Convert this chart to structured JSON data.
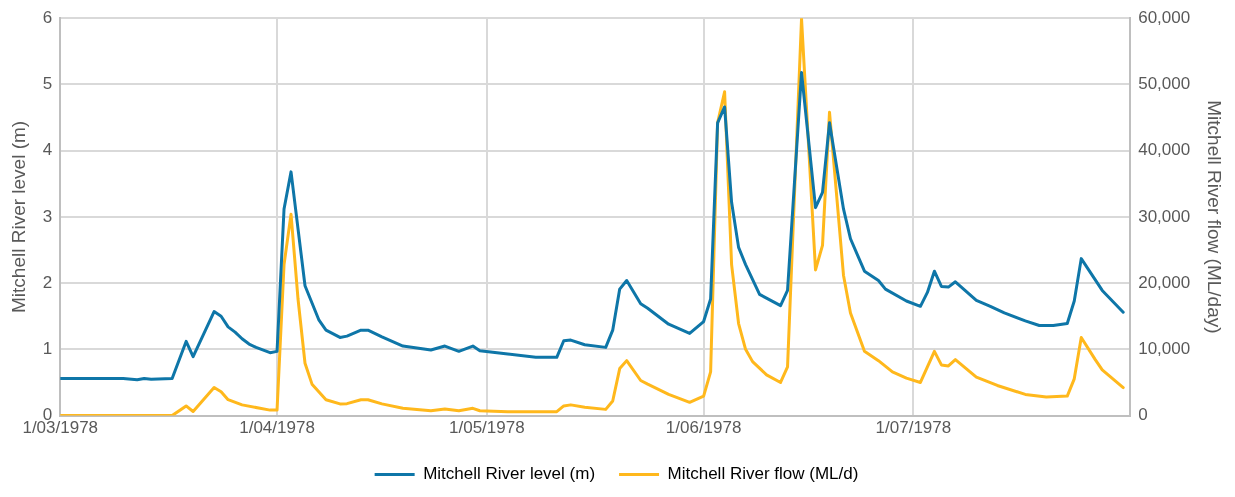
{
  "chart_data": {
    "type": "line",
    "ylabel": "Mitchell River level (m)",
    "y2label": "Mitchell River flow (ML/day)",
    "xlim": [
      "1978-03-01",
      "1978-08-01"
    ],
    "xticks": [
      {
        "value": "1978-03-01",
        "label": "1/03/1978"
      },
      {
        "value": "1978-04-01",
        "label": "1/04/1978"
      },
      {
        "value": "1978-05-01",
        "label": "1/05/1978"
      },
      {
        "value": "1978-06-01",
        "label": "1/06/1978"
      },
      {
        "value": "1978-07-01",
        "label": "1/07/1978"
      }
    ],
    "ylim": [
      0,
      6
    ],
    "yticks": [
      0,
      1,
      2,
      3,
      4,
      5,
      6
    ],
    "y2lim": [
      0,
      60000
    ],
    "y2ticks": [
      0,
      {
        "value": 10000,
        "label": "10,000"
      },
      {
        "value": 20000,
        "label": "20,000"
      },
      {
        "value": 30000,
        "label": "30,000"
      },
      {
        "value": 40000,
        "label": "40,000"
      },
      {
        "value": 50000,
        "label": "50,000"
      },
      {
        "value": 60000,
        "label": "60,000"
      }
    ],
    "grid": true,
    "legend": "bottom",
    "series": [
      {
        "name": "Mitchell River level (m)",
        "color": "#0e76a8",
        "x": [
          "1978-03-01",
          "1978-03-10",
          "1978-03-12",
          "1978-03-13",
          "1978-03-14",
          "1978-03-17",
          "1978-03-19",
          "1978-03-20",
          "1978-03-23",
          "1978-03-24",
          "1978-03-25",
          "1978-03-26",
          "1978-03-27",
          "1978-03-28",
          "1978-03-29",
          "1978-03-31",
          "1978-04-01",
          "1978-04-02",
          "1978-04-03",
          "1978-04-05",
          "1978-04-07",
          "1978-04-08",
          "1978-04-10",
          "1978-04-11",
          "1978-04-13",
          "1978-04-14",
          "1978-04-16",
          "1978-04-19",
          "1978-04-23",
          "1978-04-25",
          "1978-04-27",
          "1978-04-29",
          "1978-04-30",
          "1978-05-04",
          "1978-05-08",
          "1978-05-11",
          "1978-05-12",
          "1978-05-13",
          "1978-05-15",
          "1978-05-18",
          "1978-05-19",
          "1978-05-20",
          "1978-05-21",
          "1978-05-23",
          "1978-05-24",
          "1978-05-27",
          "1978-05-30",
          "1978-06-01",
          "1978-06-02",
          "1978-06-03",
          "1978-06-04",
          "1978-06-05",
          "1978-06-06",
          "1978-06-07",
          "1978-06-09",
          "1978-06-12",
          "1978-06-13",
          "1978-06-15",
          "1978-06-17",
          "1978-06-18",
          "1978-06-19",
          "1978-06-21",
          "1978-06-22",
          "1978-06-24",
          "1978-06-26",
          "1978-06-27",
          "1978-06-30",
          "1978-07-02",
          "1978-07-03",
          "1978-07-04",
          "1978-07-05",
          "1978-07-06",
          "1978-07-07",
          "1978-07-10",
          "1978-07-12",
          "1978-07-14",
          "1978-07-17",
          "1978-07-19",
          "1978-07-21",
          "1978-07-23",
          "1978-07-24",
          "1978-07-25",
          "1978-07-28",
          "1978-07-31"
        ],
        "values": [
          0.56,
          0.56,
          0.54,
          0.56,
          0.55,
          0.56,
          1.12,
          0.89,
          1.57,
          1.5,
          1.34,
          1.26,
          1.16,
          1.08,
          1.03,
          0.95,
          0.97,
          3.12,
          3.68,
          1.96,
          1.44,
          1.29,
          1.18,
          1.2,
          1.29,
          1.29,
          1.19,
          1.05,
          0.99,
          1.05,
          0.97,
          1.05,
          0.98,
          0.93,
          0.88,
          0.88,
          1.13,
          1.14,
          1.07,
          1.03,
          1.29,
          1.91,
          2.04,
          1.69,
          1.62,
          1.38,
          1.24,
          1.42,
          1.76,
          4.42,
          4.66,
          3.22,
          2.54,
          2.28,
          1.83,
          1.66,
          1.89,
          5.18,
          3.14,
          3.37,
          4.42,
          3.12,
          2.67,
          2.18,
          2.04,
          1.91,
          1.73,
          1.65,
          1.86,
          2.18,
          1.95,
          1.94,
          2.02,
          1.74,
          1.65,
          1.55,
          1.43,
          1.36,
          1.36,
          1.39,
          1.73,
          2.37,
          1.89,
          1.56
        ]
      },
      {
        "name": "Mitchell River flow (ML/d)",
        "color": "#ffb81c",
        "axis": "y2",
        "x": [
          "1978-03-01",
          "1978-03-17",
          "1978-03-19",
          "1978-03-20",
          "1978-03-23",
          "1978-03-24",
          "1978-03-25",
          "1978-03-27",
          "1978-03-31",
          "1978-04-01",
          "1978-04-02",
          "1978-04-03",
          "1978-04-04",
          "1978-04-05",
          "1978-04-06",
          "1978-04-08",
          "1978-04-10",
          "1978-04-11",
          "1978-04-13",
          "1978-04-14",
          "1978-04-16",
          "1978-04-19",
          "1978-04-23",
          "1978-04-25",
          "1978-04-27",
          "1978-04-29",
          "1978-04-30",
          "1978-05-04",
          "1978-05-11",
          "1978-05-12",
          "1978-05-13",
          "1978-05-15",
          "1978-05-18",
          "1978-05-19",
          "1978-05-20",
          "1978-05-21",
          "1978-05-23",
          "1978-05-24",
          "1978-05-27",
          "1978-05-30",
          "1978-06-01",
          "1978-06-02",
          "1978-06-03",
          "1978-06-04",
          "1978-06-05",
          "1978-06-06",
          "1978-06-07",
          "1978-06-08",
          "1978-06-10",
          "1978-06-12",
          "1978-06-13",
          "1978-06-15",
          "1978-06-17",
          "1978-06-18",
          "1978-06-19",
          "1978-06-21",
          "1978-06-22",
          "1978-06-24",
          "1978-06-26",
          "1978-06-28",
          "1978-06-30",
          "1978-07-02",
          "1978-07-04",
          "1978-07-05",
          "1978-07-06",
          "1978-07-07",
          "1978-07-10",
          "1978-07-13",
          "1978-07-17",
          "1978-07-20",
          "1978-07-23",
          "1978-07-24",
          "1978-07-25",
          "1978-07-27",
          "1978-07-28",
          "1978-07-31"
        ],
        "values": [
          0,
          0,
          1460,
          620,
          4230,
          3600,
          2400,
          1620,
          830,
          830,
          22800,
          30400,
          17600,
          7900,
          4750,
          2400,
          1770,
          1800,
          2400,
          2400,
          1770,
          1100,
          730,
          990,
          730,
          1100,
          730,
          600,
          600,
          1460,
          1620,
          1250,
          940,
          2200,
          7100,
          8300,
          5300,
          4750,
          3200,
          2000,
          2950,
          6600,
          44200,
          48900,
          22800,
          13900,
          10000,
          8150,
          6150,
          5000,
          7350,
          59900,
          22000,
          25700,
          45800,
          21200,
          15500,
          9700,
          8300,
          6600,
          5650,
          5000,
          9700,
          7650,
          7500,
          8450,
          5800,
          4550,
          3200,
          2800,
          2950,
          5550,
          11800,
          8450,
          6900,
          4230
        ]
      }
    ]
  }
}
